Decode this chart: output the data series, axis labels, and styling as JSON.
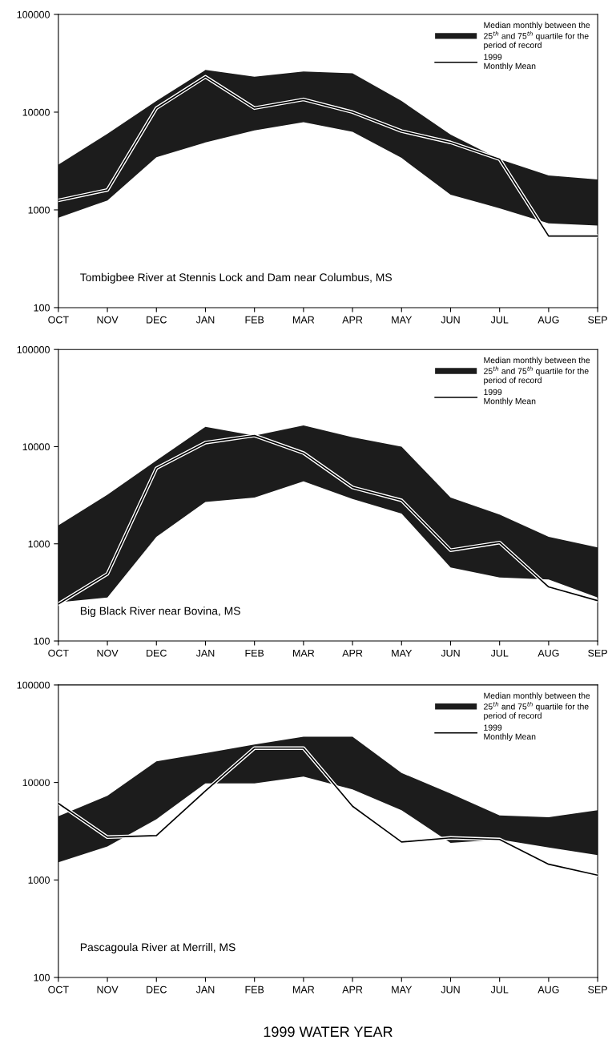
{
  "chart_data": [
    {
      "type": "line",
      "categories": [
        "OCT",
        "NOV",
        "DEC",
        "JAN",
        "FEB",
        "MAR",
        "APR",
        "MAY",
        "JUN",
        "JUL",
        "AUG",
        "SEP"
      ],
      "log": "y",
      "ylim": [
        100,
        100000
      ],
      "yticks": [
        100,
        1000,
        10000,
        100000
      ],
      "legend": "top right",
      "grid": false,
      "annotations": [
        "Tombigbee River at Stennis Lock and Dam near Columbus, MS"
      ],
      "series": [
        {
          "name": "Median monthly between the\n25$^{th}$ and 75$^{th}$ quartile for the\nperiod of record",
          "type": "area",
          "color": "#1c1c1c",
          "values": [
            null,
            null,
            null,
            null,
            null,
            null,
            null,
            null,
            null,
            null,
            null,
            null
          ],
          "lower": [
            830,
            1250,
            3450,
            4900,
            6500,
            7900,
            6300,
            3400,
            1430,
            1040,
            730,
            690
          ],
          "upper": [
            2900,
            6000,
            13000,
            27000,
            23000,
            26000,
            25000,
            13000,
            5900,
            3300,
            2250,
            2050
          ]
        },
        {
          "name": "1999\nMonthly Mean",
          "color": "#000000",
          "values": [
            1250,
            1600,
            11000,
            23000,
            11000,
            13500,
            10000,
            6400,
            4900,
            3300,
            540,
            540
          ]
        }
      ]
    },
    {
      "type": "line",
      "categories": [
        "OCT",
        "NOV",
        "DEC",
        "JAN",
        "FEB",
        "MAR",
        "APR",
        "MAY",
        "JUN",
        "JUL",
        "AUG",
        "SEP"
      ],
      "log": "y",
      "ylim": [
        100,
        100000
      ],
      "yticks": [
        100,
        1000,
        10000,
        100000
      ],
      "legend": "top right",
      "grid": false,
      "annotations": [
        "Big Black River near Bovina, MS"
      ],
      "series": [
        {
          "name": "Median monthly between the\n25$^{th}$ and 75$^{th}$ quartile for the\nperiod of record",
          "type": "area",
          "color": "#1c1c1c",
          "values": [
            null,
            null,
            null,
            null,
            null,
            null,
            null,
            null,
            null,
            null,
            null,
            null
          ],
          "lower": [
            250,
            280,
            1180,
            2700,
            3000,
            4400,
            2900,
            2050,
            570,
            450,
            430,
            280
          ],
          "upper": [
            1550,
            3200,
            7200,
            16000,
            13000,
            16500,
            12500,
            10000,
            3000,
            2000,
            1180,
            920
          ]
        },
        {
          "name": "1999\nMonthly Mean",
          "color": "#000000",
          "values": [
            240,
            490,
            6000,
            11000,
            13000,
            8600,
            3800,
            2800,
            860,
            1030,
            360,
            260
          ]
        }
      ]
    },
    {
      "type": "line",
      "categories": [
        "OCT",
        "NOV",
        "DEC",
        "JAN",
        "FEB",
        "MAR",
        "APR",
        "MAY",
        "JUN",
        "JUL",
        "AUG",
        "SEP"
      ],
      "log": "y",
      "ylim": [
        100,
        100000
      ],
      "yticks": [
        100,
        1000,
        10000,
        100000
      ],
      "legend": "top right",
      "grid": false,
      "xlabel": "1999 WATER YEAR",
      "annotations": [
        "Pascagoula River at Merrill, MS"
      ],
      "series": [
        {
          "name": "Median monthly between the\n25$^{th}$ and 75$^{th}$ quartile for the\nperiod of record",
          "type": "area",
          "color": "#1c1c1c",
          "values": [
            null,
            null,
            null,
            null,
            null,
            null,
            null,
            null,
            null,
            null,
            null,
            null
          ],
          "lower": [
            1520,
            2200,
            4200,
            9800,
            9800,
            11500,
            8500,
            5200,
            2400,
            2600,
            2150,
            1800
          ],
          "upper": [
            4500,
            7300,
            16500,
            20000,
            24500,
            29500,
            29500,
            12500,
            7700,
            4600,
            4400,
            5200
          ]
        },
        {
          "name": "1999\nMonthly Mean",
          "color": "#000000",
          "values": [
            6100,
            2750,
            2850,
            8200,
            22500,
            22500,
            5700,
            2450,
            2700,
            2600,
            1450,
            1120
          ]
        }
      ]
    }
  ]
}
